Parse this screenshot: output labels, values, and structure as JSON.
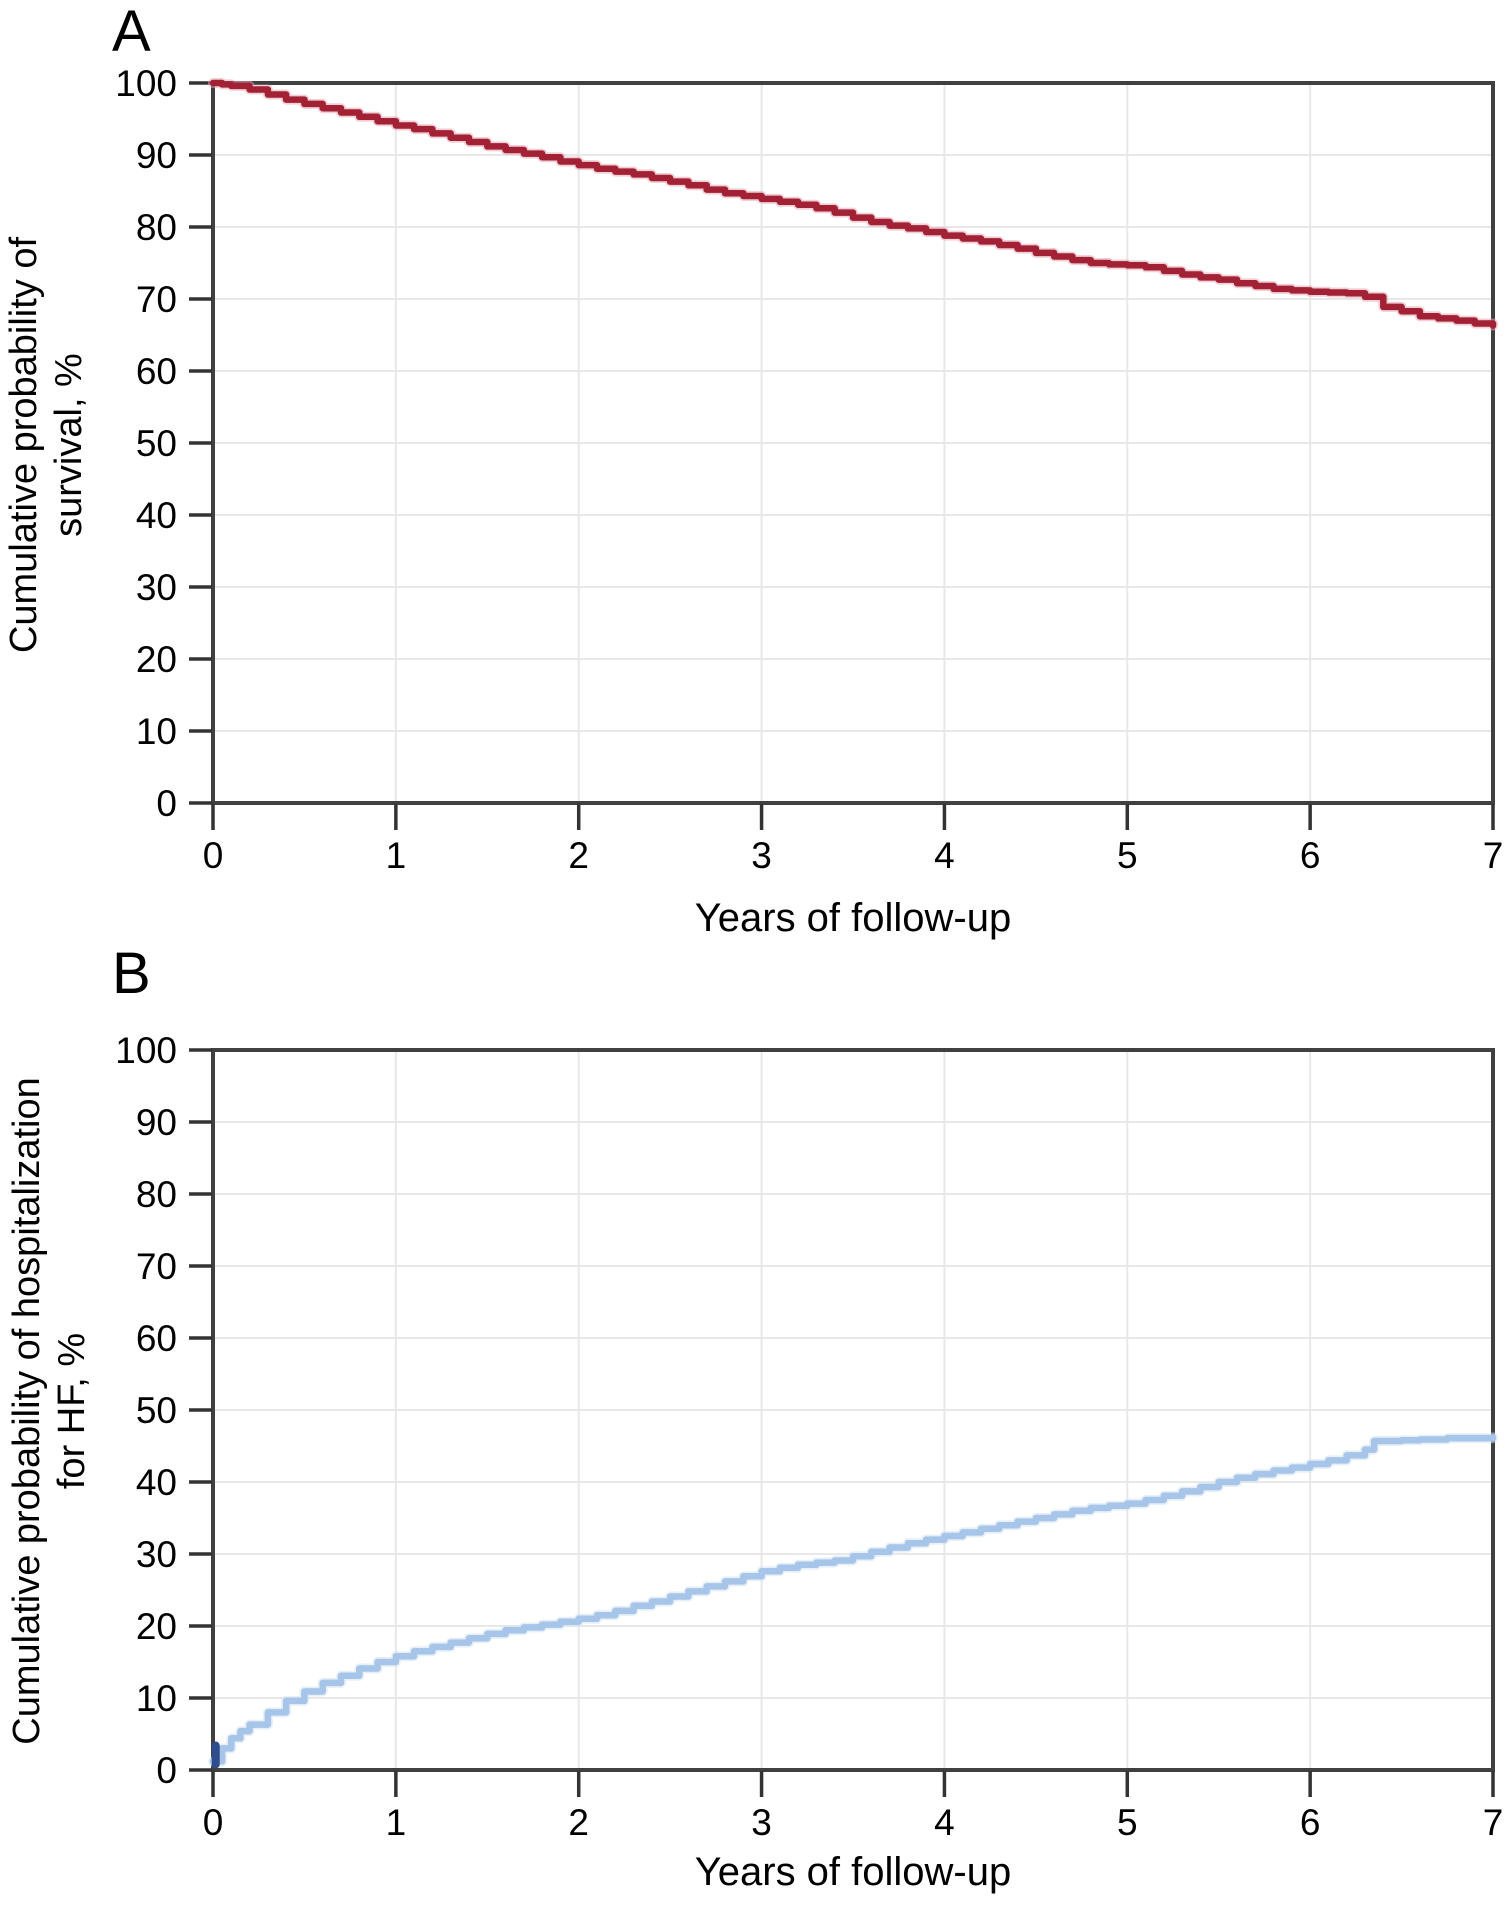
{
  "style": {
    "frame_color": "#404040",
    "grid_color": "#e8e8e8",
    "tick_color": "#333333",
    "text_color": "#000000"
  },
  "chart_data": [
    {
      "type": "line",
      "panel_label": "A",
      "ylabel_lines": [
        "Cumulative probability of",
        "survival, %"
      ],
      "ylabel": "Cumulative probability of survival, %",
      "xlabel": "Years of follow-up",
      "xlim": [
        0,
        7
      ],
      "ylim": [
        0,
        100
      ],
      "x_ticks": [
        0,
        1,
        2,
        3,
        4,
        5,
        6,
        7
      ],
      "y_ticks": [
        0,
        10,
        20,
        30,
        40,
        50,
        60,
        70,
        80,
        90,
        100
      ],
      "grid": true,
      "legend": "none",
      "series": [
        {
          "name": "Cumulative probability of survival",
          "color": "#a32135",
          "halo_color": "#e4aab5",
          "step": true,
          "points": [
            [
              0,
              100
            ],
            [
              0.05,
              99.8
            ],
            [
              0.1,
              99.6
            ],
            [
              0.2,
              99.1
            ],
            [
              0.3,
              98.4
            ],
            [
              0.4,
              97.7
            ],
            [
              0.5,
              97.1
            ],
            [
              0.6,
              96.5
            ],
            [
              0.7,
              95.9
            ],
            [
              0.8,
              95.3
            ],
            [
              0.9,
              94.7
            ],
            [
              1,
              94.1
            ],
            [
              1.1,
              93.6
            ],
            [
              1.2,
              93
            ],
            [
              1.3,
              92.4
            ],
            [
              1.4,
              91.8
            ],
            [
              1.5,
              91.2
            ],
            [
              1.6,
              90.7
            ],
            [
              1.7,
              90.2
            ],
            [
              1.8,
              89.7
            ],
            [
              1.9,
              89.1
            ],
            [
              2,
              88.6
            ],
            [
              2.1,
              88.1
            ],
            [
              2.2,
              87.7
            ],
            [
              2.3,
              87.3
            ],
            [
              2.4,
              86.8
            ],
            [
              2.5,
              86.3
            ],
            [
              2.6,
              85.8
            ],
            [
              2.7,
              85.2
            ],
            [
              2.8,
              84.7
            ],
            [
              2.9,
              84.3
            ],
            [
              3,
              83.9
            ],
            [
              3.1,
              83.5
            ],
            [
              3.2,
              83.1
            ],
            [
              3.3,
              82.6
            ],
            [
              3.4,
              82
            ],
            [
              3.5,
              81.3
            ],
            [
              3.6,
              80.7
            ],
            [
              3.7,
              80.2
            ],
            [
              3.8,
              79.8
            ],
            [
              3.9,
              79.3
            ],
            [
              4,
              78.8
            ],
            [
              4.1,
              78.4
            ],
            [
              4.2,
              78
            ],
            [
              4.3,
              77.5
            ],
            [
              4.4,
              77
            ],
            [
              4.5,
              76.4
            ],
            [
              4.6,
              75.9
            ],
            [
              4.7,
              75.4
            ],
            [
              4.8,
              75
            ],
            [
              4.9,
              74.8
            ],
            [
              5,
              74.7
            ],
            [
              5.1,
              74.4
            ],
            [
              5.2,
              73.9
            ],
            [
              5.3,
              73.4
            ],
            [
              5.4,
              73
            ],
            [
              5.5,
              72.7
            ],
            [
              5.6,
              72.2
            ],
            [
              5.7,
              71.8
            ],
            [
              5.8,
              71.4
            ],
            [
              5.9,
              71.2
            ],
            [
              6,
              71
            ],
            [
              6.1,
              70.9
            ],
            [
              6.2,
              70.8
            ],
            [
              6.3,
              70.3
            ],
            [
              6.4,
              68.9
            ],
            [
              6.5,
              68.3
            ],
            [
              6.6,
              67.6
            ],
            [
              6.7,
              67.3
            ],
            [
              6.8,
              67
            ],
            [
              6.9,
              66.6
            ],
            [
              7,
              66.3
            ]
          ]
        }
      ]
    },
    {
      "type": "line",
      "panel_label": "B",
      "ylabel_lines": [
        "Cumulative probability of hospitalization",
        "for HF, %"
      ],
      "ylabel": "Cumulative probability of hospitalization for HF, %",
      "xlabel": "Years of follow-up",
      "xlim": [
        0,
        7
      ],
      "ylim": [
        0,
        100
      ],
      "x_ticks": [
        0,
        1,
        2,
        3,
        4,
        5,
        6,
        7
      ],
      "y_ticks": [
        0,
        10,
        20,
        30,
        40,
        50,
        60,
        70,
        80,
        90,
        100
      ],
      "grid": true,
      "legend": "none",
      "start_marker": {
        "color": "#2f4d8e",
        "t": 0.015,
        "v_from": 0.8,
        "v_to": 3.4
      },
      "series": [
        {
          "name": "Cumulative probability of hospitalization for HF",
          "color": "#a6c5e8",
          "halo_color": "#d3e2f3",
          "step": true,
          "points": [
            [
              0,
              1.2
            ],
            [
              0.05,
              3
            ],
            [
              0.1,
              4.4
            ],
            [
              0.15,
              5.4
            ],
            [
              0.2,
              6.3
            ],
            [
              0.3,
              8
            ],
            [
              0.4,
              9.6
            ],
            [
              0.5,
              10.9
            ],
            [
              0.6,
              12.1
            ],
            [
              0.7,
              13.1
            ],
            [
              0.8,
              14.1
            ],
            [
              0.9,
              15
            ],
            [
              1,
              15.8
            ],
            [
              1.1,
              16.5
            ],
            [
              1.2,
              17.1
            ],
            [
              1.3,
              17.7
            ],
            [
              1.4,
              18.3
            ],
            [
              1.5,
              18.9
            ],
            [
              1.6,
              19.4
            ],
            [
              1.7,
              19.8
            ],
            [
              1.8,
              20.2
            ],
            [
              1.9,
              20.6
            ],
            [
              2,
              21
            ],
            [
              2.1,
              21.5
            ],
            [
              2.2,
              22.1
            ],
            [
              2.3,
              22.8
            ],
            [
              2.4,
              23.4
            ],
            [
              2.5,
              24.1
            ],
            [
              2.6,
              24.8
            ],
            [
              2.7,
              25.5
            ],
            [
              2.8,
              26.2
            ],
            [
              2.9,
              26.9
            ],
            [
              3,
              27.6
            ],
            [
              3.1,
              28.1
            ],
            [
              3.2,
              28.5
            ],
            [
              3.3,
              28.8
            ],
            [
              3.4,
              29.1
            ],
            [
              3.5,
              29.7
            ],
            [
              3.6,
              30.3
            ],
            [
              3.7,
              30.9
            ],
            [
              3.8,
              31.5
            ],
            [
              3.9,
              32
            ],
            [
              4,
              32.5
            ],
            [
              4.1,
              33
            ],
            [
              4.2,
              33.5
            ],
            [
              4.3,
              34
            ],
            [
              4.4,
              34.5
            ],
            [
              4.5,
              35
            ],
            [
              4.6,
              35.5
            ],
            [
              4.7,
              36
            ],
            [
              4.8,
              36.4
            ],
            [
              4.9,
              36.7
            ],
            [
              5,
              37
            ],
            [
              5.1,
              37.5
            ],
            [
              5.2,
              38.1
            ],
            [
              5.3,
              38.7
            ],
            [
              5.4,
              39.3
            ],
            [
              5.5,
              40
            ],
            [
              5.6,
              40.6
            ],
            [
              5.7,
              41.1
            ],
            [
              5.8,
              41.6
            ],
            [
              5.9,
              42
            ],
            [
              6,
              42.5
            ],
            [
              6.1,
              43
            ],
            [
              6.2,
              43.7
            ],
            [
              6.3,
              44.5
            ],
            [
              6.35,
              45.7
            ],
            [
              6.5,
              45.8
            ],
            [
              6.6,
              45.9
            ],
            [
              6.75,
              46.1
            ],
            [
              7,
              46.2
            ]
          ]
        }
      ]
    }
  ]
}
